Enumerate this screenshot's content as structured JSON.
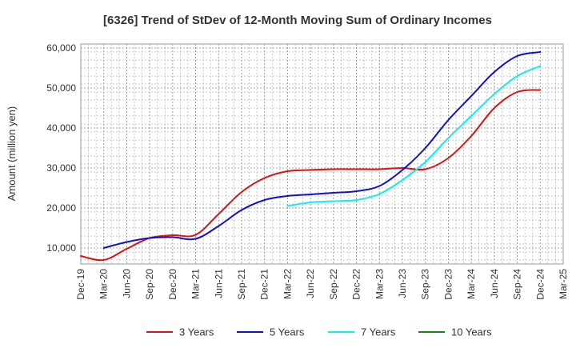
{
  "chart_data": {
    "type": "line",
    "title": "[6326]  Trend of StDev of 12-Month Moving Sum of Ordinary Incomes",
    "xlabel": "",
    "ylabel": "Amount (million yen)",
    "ylim": [
      6000,
      61000
    ],
    "yticks": [
      10000,
      20000,
      30000,
      40000,
      50000,
      60000
    ],
    "ytick_labels": [
      "10,000",
      "20,000",
      "30,000",
      "40,000",
      "50,000",
      "60,000"
    ],
    "categories": [
      "Dec-19",
      "Mar-20",
      "Jun-20",
      "Sep-20",
      "Dec-20",
      "Mar-21",
      "Jun-21",
      "Sep-21",
      "Dec-21",
      "Mar-22",
      "Jun-22",
      "Sep-22",
      "Dec-22",
      "Mar-23",
      "Jun-23",
      "Sep-23",
      "Dec-23",
      "Mar-24",
      "Jun-24",
      "Sep-24",
      "Dec-24",
      "Mar-25"
    ],
    "grid": true,
    "legend_position": "bottom",
    "series": [
      {
        "name": "3 Years",
        "color": "#dd1111",
        "values": [
          8000,
          7000,
          9800,
          12500,
          13200,
          13300,
          18500,
          24000,
          27500,
          29200,
          29500,
          29700,
          29700,
          29700,
          30000,
          29700,
          32500,
          38000,
          45000,
          49000,
          49500,
          null
        ]
      },
      {
        "name": "5 Years",
        "color": "#1111cc",
        "values": [
          null,
          10000,
          11500,
          12500,
          12700,
          12300,
          15500,
          19500,
          22000,
          23000,
          23400,
          23800,
          24200,
          25500,
          29500,
          35000,
          42000,
          48000,
          54000,
          58000,
          59000,
          null
        ]
      },
      {
        "name": "7 Years",
        "color": "#11eeee",
        "values": [
          null,
          null,
          null,
          null,
          null,
          null,
          null,
          null,
          null,
          20500,
          21400,
          21700,
          22000,
          23500,
          27000,
          31500,
          37500,
          43000,
          48500,
          53000,
          55500,
          null
        ]
      },
      {
        "name": "10 Years",
        "color": "#118811",
        "values": [
          null,
          null,
          null,
          null,
          null,
          null,
          null,
          null,
          null,
          null,
          null,
          null,
          null,
          null,
          null,
          null,
          null,
          null,
          null,
          null,
          null,
          null
        ]
      }
    ]
  }
}
